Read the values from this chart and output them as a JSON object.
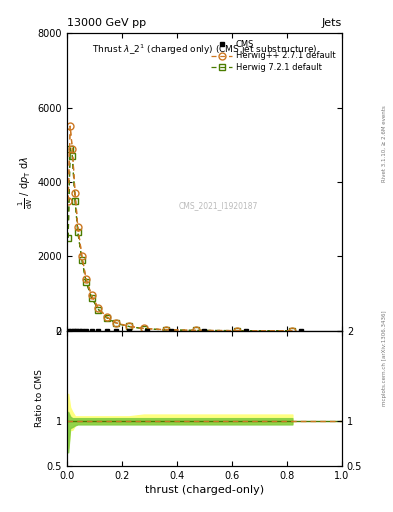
{
  "title": "13000 GeV pp",
  "title_right": "Jets",
  "watermark": "CMS_2021_I1920187",
  "rivet_label": "Rivet 3.1.10, ≥ 2.6M events",
  "arxiv_label": "mcplots.cern.ch [arXiv:1306.3436]",
  "xlabel": "thrust (charged-only)",
  "ylabel_ratio": "Ratio to CMS",
  "herwig_pp_x": [
    0.005,
    0.012,
    0.02,
    0.03,
    0.04,
    0.055,
    0.07,
    0.09,
    0.115,
    0.145,
    0.18,
    0.225,
    0.28,
    0.36,
    0.47,
    0.62,
    0.82
  ],
  "herwig_pp_y": [
    3500,
    5500,
    4900,
    3700,
    2800,
    2000,
    1400,
    950,
    600,
    370,
    210,
    120,
    60,
    25,
    9,
    3,
    0.5
  ],
  "herwig7_x": [
    0.005,
    0.012,
    0.02,
    0.03,
    0.04,
    0.055,
    0.07,
    0.09,
    0.115,
    0.145,
    0.18,
    0.225,
    0.28,
    0.36,
    0.47,
    0.62,
    0.82
  ],
  "herwig7_y": [
    2500,
    4900,
    4700,
    3500,
    2650,
    1900,
    1320,
    890,
    570,
    350,
    200,
    115,
    55,
    22,
    8,
    2.5,
    0.4
  ],
  "cms_x": [
    0.005,
    0.015,
    0.025,
    0.035,
    0.045,
    0.055,
    0.07,
    0.09,
    0.115,
    0.145,
    0.18,
    0.225,
    0.29,
    0.38,
    0.5,
    0.65,
    0.85
  ],
  "ratio_pp_x": [
    0.005,
    0.012,
    0.02,
    0.03,
    0.04,
    0.055,
    0.07,
    0.09,
    0.115,
    0.145,
    0.18,
    0.225,
    0.28,
    0.36,
    0.47,
    0.62,
    0.82
  ],
  "ratio_pp_lo": [
    0.7,
    0.9,
    0.9,
    0.95,
    0.97,
    0.97,
    0.97,
    0.97,
    0.97,
    0.97,
    0.97,
    0.97,
    0.97,
    0.97,
    0.97,
    0.97,
    0.97
  ],
  "ratio_pp_hi": [
    1.3,
    1.15,
    1.1,
    1.05,
    1.05,
    1.05,
    1.05,
    1.05,
    1.05,
    1.05,
    1.05,
    1.05,
    1.07,
    1.07,
    1.07,
    1.07,
    1.07
  ],
  "ratio_h7_lo": [
    0.65,
    0.92,
    0.93,
    0.95,
    0.96,
    0.96,
    0.96,
    0.96,
    0.96,
    0.96,
    0.96,
    0.96,
    0.96,
    0.96,
    0.96,
    0.96,
    0.96
  ],
  "ratio_h7_hi": [
    1.1,
    1.05,
    1.03,
    1.03,
    1.03,
    1.03,
    1.03,
    1.03,
    1.03,
    1.03,
    1.03,
    1.03,
    1.03,
    1.03,
    1.03,
    1.03,
    1.03
  ],
  "cms_color": "#000000",
  "herwig_pp_color": "#cc7722",
  "herwig7_color": "#4a7c00",
  "band_pp_color": "#ffff80",
  "band_h7_color": "#80cc40",
  "xlim": [
    0.0,
    1.0
  ],
  "ylim_main": [
    0,
    8000
  ],
  "ylim_ratio": [
    0.5,
    2.0
  ],
  "yticks_main": [
    0,
    2000,
    4000,
    6000,
    8000
  ],
  "ytick_labels_main": [
    "0",
    "2000",
    "4000",
    "6000",
    "8000"
  ],
  "yticks_ratio": [
    0.5,
    1.0,
    2.0
  ],
  "ytick_labels_ratio": [
    "0.5",
    "1",
    "2"
  ]
}
